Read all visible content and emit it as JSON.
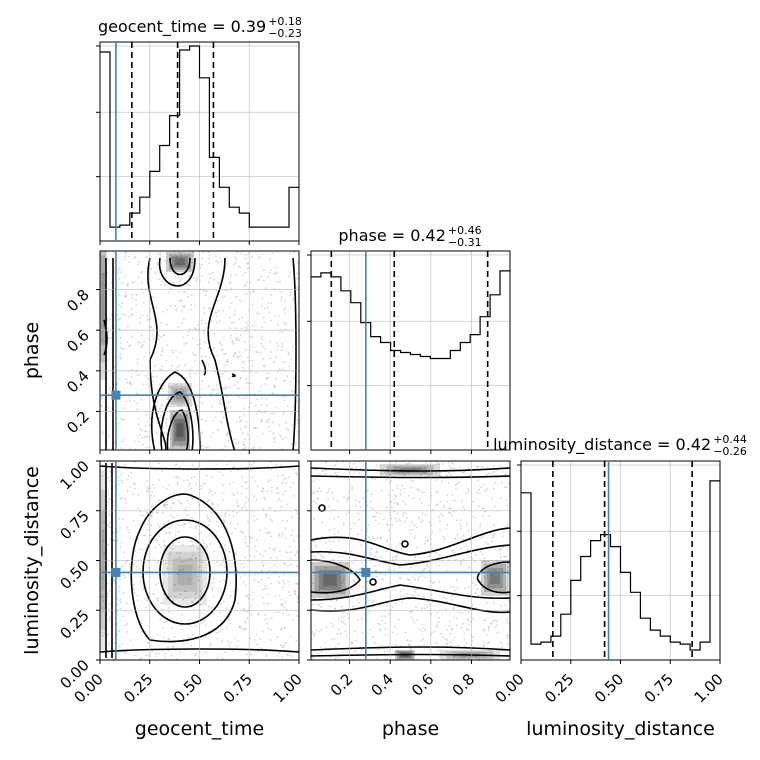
{
  "chart_data": {
    "type": "corner",
    "parameters": [
      "geocent_time",
      "phase",
      "luminosity_distance"
    ],
    "titles": [
      {
        "param": "geocent_time",
        "label": "geocent_time = 0.39",
        "plus": "+0.18",
        "minus": "−0.23"
      },
      {
        "param": "phase",
        "label": "phase = 0.42",
        "plus": "+0.46",
        "minus": "−0.31"
      },
      {
        "param": "luminosity_distance",
        "label": "luminosity_distance = 0.42",
        "plus": "+0.44",
        "minus": "−0.26"
      }
    ],
    "ranges": {
      "geocent_time": [
        0.0,
        1.0
      ],
      "phase": [
        0.01,
        0.99
      ],
      "luminosity_distance": [
        0.0,
        1.0
      ]
    },
    "xticklabels": {
      "geocent_time": [
        "0.00",
        "0.25",
        "0.50",
        "0.75",
        "1.00"
      ],
      "phase": [
        "0.2",
        "0.4",
        "0.6",
        "0.8"
      ],
      "luminosity_distance": [
        "0.00",
        "0.25",
        "0.50",
        "0.75",
        "1.00"
      ]
    },
    "yticklabels": {
      "phase": [
        "0.2",
        "0.4",
        "0.6",
        "0.8"
      ],
      "luminosity_distance": [
        "0.00",
        "0.25",
        "0.50",
        "0.75",
        "1.00"
      ]
    },
    "truths": {
      "geocent_time": 0.08,
      "phase": 0.28,
      "luminosity_distance": 0.44
    },
    "quantiles": {
      "geocent_time": [
        0.16,
        0.39,
        0.57
      ],
      "phase": [
        0.11,
        0.42,
        0.88
      ],
      "luminosity_distance": [
        0.16,
        0.42,
        0.86
      ]
    },
    "histograms": {
      "geocent_time": [
        0.95,
        0.07,
        0.08,
        0.14,
        0.22,
        0.35,
        0.48,
        0.63,
        0.96,
        0.98,
        0.82,
        0.42,
        0.27,
        0.17,
        0.14,
        0.07,
        0.07,
        0.07,
        0.07,
        0.27
      ],
      "phase": [
        0.87,
        0.89,
        0.87,
        0.8,
        0.74,
        0.64,
        0.57,
        0.54,
        0.5,
        0.49,
        0.48,
        0.47,
        0.46,
        0.46,
        0.5,
        0.54,
        0.58,
        0.67,
        0.78,
        0.9
      ],
      "luminosity_distance": [
        0.84,
        0.08,
        0.09,
        0.12,
        0.23,
        0.4,
        0.52,
        0.6,
        0.63,
        0.57,
        0.44,
        0.34,
        0.21,
        0.15,
        0.12,
        0.09,
        0.08,
        0.05,
        0.09,
        0.9
      ]
    },
    "grid": true,
    "colors": {
      "truth": "#4682b4",
      "line": "#000000",
      "scatter": "#b0b0b0",
      "grid": "#b0b0b0"
    }
  }
}
